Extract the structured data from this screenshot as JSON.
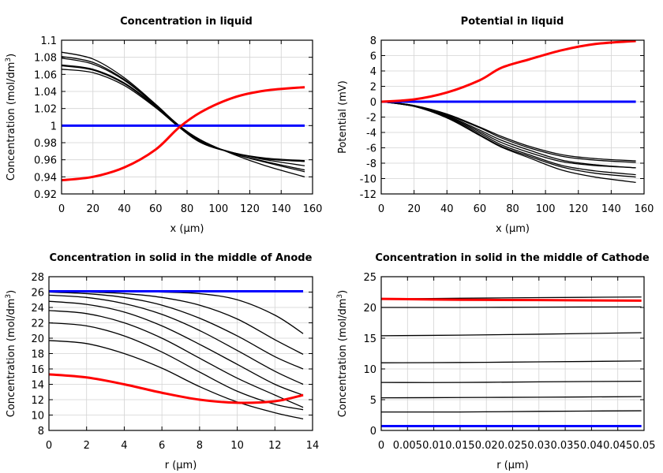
{
  "colors": {
    "red": "#ff0000",
    "blue": "#0000ff",
    "black": "#000000",
    "grid": "#d3d3d3"
  },
  "chart_data": [
    {
      "type": "line",
      "title": "Concentration in liquid",
      "xlabel": "x (µm)",
      "ylabel": "Concentration (mol/dm",
      "ylabel_sup": "3",
      "ylabel_end": ")",
      "xlim": [
        0,
        160
      ],
      "ylim": [
        0.92,
        1.1
      ],
      "grid": true,
      "xticks": [
        0,
        20,
        40,
        60,
        80,
        100,
        120,
        140,
        160
      ],
      "xtick_labels": [
        "0",
        "20",
        "40",
        "60",
        "80",
        "100",
        "120",
        "140",
        "160"
      ],
      "yticks": [
        0.92,
        0.94,
        0.96,
        0.98,
        1,
        1.02,
        1.04,
        1.06,
        1.08,
        1.1
      ],
      "ytick_labels": [
        "0.92",
        "0.94",
        "0.96",
        "0.98",
        "1",
        "1.02",
        "1.04",
        "1.06",
        "1.08",
        "1.1"
      ],
      "x": [
        0,
        20,
        40,
        60,
        75,
        90,
        110,
        130,
        155
      ],
      "series": [
        {
          "name": "black-1",
          "color": "black",
          "values": [
            1.086,
            1.078,
            1.056,
            1.025,
            1.0,
            0.982,
            0.966,
            0.953,
            0.94
          ]
        },
        {
          "name": "black-2",
          "color": "black",
          "values": [
            1.081,
            1.074,
            1.054,
            1.024,
            1.0,
            0.981,
            0.967,
            0.957,
            0.946
          ]
        },
        {
          "name": "black-3",
          "color": "black",
          "values": [
            1.079,
            1.072,
            1.053,
            1.024,
            1.0,
            0.981,
            0.967,
            0.958,
            0.948
          ]
        },
        {
          "name": "black-4",
          "color": "black",
          "values": [
            1.071,
            1.066,
            1.05,
            1.023,
            0.999,
            0.98,
            0.968,
            0.96,
            0.953
          ]
        },
        {
          "name": "black-5",
          "color": "black",
          "values": [
            1.07,
            1.065,
            1.049,
            1.022,
            0.998,
            0.979,
            0.968,
            0.961,
            0.958
          ]
        },
        {
          "name": "black-6",
          "color": "black",
          "values": [
            1.066,
            1.062,
            1.047,
            1.021,
            0.998,
            0.979,
            0.968,
            0.962,
            0.959
          ]
        },
        {
          "name": "blue",
          "color": "blue",
          "values": [
            1,
            1,
            1,
            1,
            1,
            1,
            1,
            1,
            1
          ]
        },
        {
          "name": "red",
          "color": "red",
          "values": [
            0.936,
            0.94,
            0.951,
            0.972,
            0.998,
            1.017,
            1.033,
            1.041,
            1.045
          ]
        }
      ]
    },
    {
      "type": "line",
      "title": "Potential in liquid",
      "xlabel": "x (µm)",
      "ylabel": "Potential (mV)",
      "ylabel_sup": "",
      "ylabel_end": "",
      "xlim": [
        0,
        160
      ],
      "ylim": [
        -12,
        8
      ],
      "grid": true,
      "xticks": [
        0,
        20,
        40,
        60,
        80,
        100,
        120,
        140,
        160
      ],
      "xtick_labels": [
        "0",
        "20",
        "40",
        "60",
        "80",
        "100",
        "120",
        "140",
        "160"
      ],
      "yticks": [
        -12,
        -10,
        -8,
        -6,
        -4,
        -2,
        0,
        2,
        4,
        6,
        8
      ],
      "ytick_labels": [
        "-12",
        "-10",
        "-8",
        "-6",
        "-4",
        "-2",
        "0",
        "2",
        "4",
        "6",
        "8"
      ],
      "x": [
        0,
        20,
        40,
        60,
        73,
        90,
        110,
        130,
        155
      ],
      "series": [
        {
          "name": "black-1",
          "color": "black",
          "values": [
            0,
            -0.5,
            -1.6,
            -3.3,
            -4.5,
            -5.8,
            -6.9,
            -7.4,
            -7.7
          ]
        },
        {
          "name": "black-2",
          "color": "black",
          "values": [
            0,
            -0.5,
            -1.7,
            -3.4,
            -4.7,
            -6.0,
            -7.1,
            -7.6,
            -7.9
          ]
        },
        {
          "name": "black-3",
          "color": "black",
          "values": [
            0,
            -0.5,
            -1.8,
            -3.7,
            -5.0,
            -6.3,
            -7.6,
            -8.2,
            -8.6
          ]
        },
        {
          "name": "black-4",
          "color": "black",
          "values": [
            0,
            -0.6,
            -1.9,
            -3.9,
            -5.3,
            -6.6,
            -7.8,
            -8.3,
            -8.6
          ]
        },
        {
          "name": "black-5",
          "color": "black",
          "values": [
            0,
            -0.6,
            -2.0,
            -4.1,
            -5.6,
            -6.9,
            -8.3,
            -9.0,
            -9.5
          ]
        },
        {
          "name": "black-6",
          "color": "black",
          "values": [
            0,
            -0.6,
            -2.1,
            -4.3,
            -5.8,
            -7.1,
            -8.5,
            -9.3,
            -9.8
          ]
        },
        {
          "name": "black-7",
          "color": "black",
          "values": [
            0,
            -0.6,
            -2.1,
            -4.4,
            -5.9,
            -7.3,
            -8.9,
            -9.8,
            -10.5
          ]
        },
        {
          "name": "blue",
          "color": "blue",
          "values": [
            0,
            0,
            0,
            0,
            0,
            0,
            0,
            0,
            0
          ]
        },
        {
          "name": "red",
          "color": "red",
          "values": [
            0,
            0.3,
            1.2,
            2.8,
            4.4,
            5.5,
            6.7,
            7.5,
            7.9
          ]
        }
      ]
    },
    {
      "type": "line",
      "title": "Concentration in solid in the middle of Anode",
      "xlabel": "r (µm)",
      "ylabel": "Concentration (mol/dm",
      "ylabel_sup": "3",
      "ylabel_end": ")",
      "xlim": [
        0,
        14
      ],
      "ylim": [
        8,
        28
      ],
      "grid": true,
      "xticks": [
        0,
        2,
        4,
        6,
        8,
        10,
        12,
        14
      ],
      "xtick_labels": [
        "0",
        "2",
        "4",
        "6",
        "8",
        "10",
        "12",
        "14"
      ],
      "yticks": [
        8,
        10,
        12,
        14,
        16,
        18,
        20,
        22,
        24,
        26,
        28
      ],
      "ytick_labels": [
        "8",
        "10",
        "12",
        "14",
        "16",
        "18",
        "20",
        "22",
        "24",
        "26",
        "28"
      ],
      "x": [
        0,
        2,
        4,
        6,
        8,
        10,
        12,
        13.5
      ],
      "series": [
        {
          "name": "black-1",
          "color": "black",
          "values": [
            26.1,
            26.1,
            26.1,
            26.0,
            25.8,
            25.0,
            23.0,
            20.6
          ]
        },
        {
          "name": "black-2",
          "color": "black",
          "values": [
            26.1,
            26.0,
            25.8,
            25.3,
            24.3,
            22.5,
            19.8,
            17.9
          ]
        },
        {
          "name": "black-3",
          "color": "black",
          "values": [
            26.0,
            25.8,
            25.3,
            24.3,
            22.6,
            20.3,
            17.6,
            16.0
          ]
        },
        {
          "name": "black-4",
          "color": "black",
          "values": [
            25.6,
            25.3,
            24.5,
            23.1,
            21.0,
            18.4,
            15.7,
            14.0
          ]
        },
        {
          "name": "black-5",
          "color": "black",
          "values": [
            24.8,
            24.4,
            23.4,
            21.6,
            19.2,
            16.6,
            14.0,
            12.6
          ]
        },
        {
          "name": "black-6",
          "color": "black",
          "values": [
            23.6,
            23.2,
            22.0,
            20.0,
            17.4,
            14.8,
            12.6,
            11.0
          ]
        },
        {
          "name": "black-7",
          "color": "black",
          "values": [
            22.0,
            21.6,
            20.3,
            18.2,
            15.6,
            13.1,
            11.4,
            10.7
          ]
        },
        {
          "name": "black-8",
          "color": "black",
          "values": [
            19.7,
            19.3,
            18.0,
            16.1,
            13.7,
            11.7,
            10.3,
            9.5
          ]
        },
        {
          "name": "blue",
          "color": "blue",
          "values": [
            26.1,
            26.1,
            26.1,
            26.1,
            26.1,
            26.1,
            26.1,
            26.1
          ]
        },
        {
          "name": "red",
          "color": "red",
          "values": [
            15.3,
            14.9,
            14.0,
            12.9,
            12.0,
            11.6,
            11.8,
            12.6
          ]
        }
      ]
    },
    {
      "type": "line",
      "title": "Concentration in solid in the middle of Cathode",
      "xlabel": "r (µm)",
      "ylabel": "Concentration (mol/dm",
      "ylabel_sup": "3",
      "ylabel_end": ")",
      "xlim": [
        0,
        0.05
      ],
      "ylim": [
        0,
        25
      ],
      "grid": true,
      "xticks": [
        0,
        0.005,
        0.01,
        0.015,
        0.02,
        0.025,
        0.03,
        0.035,
        0.04,
        0.045,
        0.05
      ],
      "xtick_labels": [
        "0",
        "0.005",
        "0.01",
        "0.015",
        "0.02",
        "0.025",
        "0.03",
        "0.035",
        "0.04",
        "0.045",
        "0.05"
      ],
      "yticks": [
        0,
        5,
        10,
        15,
        20,
        25
      ],
      "ytick_labels": [
        "0",
        "5",
        "10",
        "15",
        "20",
        "25"
      ],
      "x": [
        0,
        0.015,
        0.03,
        0.0495
      ],
      "series": [
        {
          "name": "black-1",
          "color": "black",
          "values": [
            21.4,
            21.5,
            21.6,
            21.7
          ]
        },
        {
          "name": "black-2",
          "color": "black",
          "values": [
            20.0,
            20.0,
            20.05,
            20.1
          ]
        },
        {
          "name": "black-3",
          "color": "black",
          "values": [
            15.4,
            15.5,
            15.65,
            15.9
          ]
        },
        {
          "name": "black-4",
          "color": "black",
          "values": [
            11.0,
            11.05,
            11.15,
            11.3
          ]
        },
        {
          "name": "black-5",
          "color": "black",
          "values": [
            7.8,
            7.8,
            7.9,
            8.0
          ]
        },
        {
          "name": "black-6",
          "color": "black",
          "values": [
            5.3,
            5.35,
            5.4,
            5.5
          ]
        },
        {
          "name": "black-7",
          "color": "black",
          "values": [
            3.0,
            3.0,
            3.1,
            3.2
          ]
        },
        {
          "name": "blue",
          "color": "blue",
          "values": [
            0.7,
            0.7,
            0.7,
            0.7
          ]
        },
        {
          "name": "red",
          "color": "red",
          "values": [
            21.4,
            21.25,
            21.2,
            21.1
          ]
        }
      ]
    }
  ]
}
